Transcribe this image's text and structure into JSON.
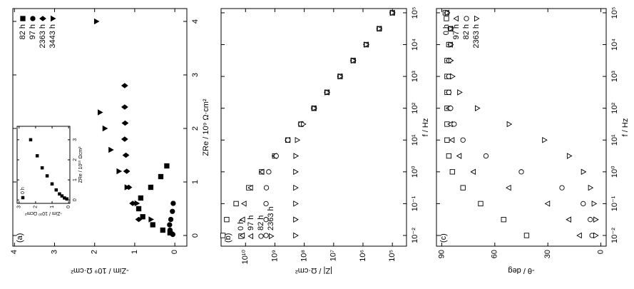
{
  "chart_data": [
    {
      "type": "scatter",
      "panel_label": "(a)",
      "xlabel": "ZRe / 10⁹ Ω·cm²",
      "ylabel": "-Zim / 10⁹ Ω·cm²",
      "xlim": [
        -0.2,
        4.24
      ],
      "ylim": [
        -0.3,
        4.04
      ],
      "xticks": [
        0,
        1,
        2,
        3,
        4
      ],
      "yticks": [
        0,
        1,
        2,
        3,
        4
      ],
      "legend": "upper right",
      "filled": true,
      "series": [
        {
          "name": "82 h",
          "marker": "square",
          "color": "#000000",
          "x": [
            0.05,
            0.1,
            0.2,
            0.35,
            0.5,
            0.7,
            0.9,
            1.1,
            1.3
          ],
          "values": [
            0.12,
            0.3,
            0.55,
            0.8,
            0.9,
            0.85,
            0.6,
            0.35,
            0.2
          ]
        },
        {
          "name": "97 h",
          "marker": "circle",
          "color": "#000000",
          "x": [
            0.02,
            0.05,
            0.1,
            0.2,
            0.3,
            0.45,
            0.6
          ],
          "values": [
            0.05,
            0.1,
            0.12,
            0.13,
            0.1,
            0.06,
            0.04
          ]
        },
        {
          "name": "2363 h",
          "marker": "diamond",
          "color": "#000000",
          "x": [
            0.3,
            0.6,
            0.9,
            1.2,
            1.5,
            1.8,
            2.1,
            2.4,
            2.8
          ],
          "values": [
            0.9,
            1.05,
            1.15,
            1.2,
            1.22,
            1.25,
            1.24,
            1.25,
            1.25
          ]
        },
        {
          "name": "3443 h",
          "marker": "triangle-down",
          "color": "#000000",
          "x": [
            0.3,
            0.6,
            0.9,
            1.2,
            1.6,
            2.0,
            2.3,
            4.0
          ],
          "values": [
            0.6,
            0.95,
            1.2,
            1.4,
            1.6,
            1.75,
            1.87,
            1.96
          ]
        }
      ],
      "inset": {
        "type": "scatter",
        "xlabel": "ZRe / 10¹⁰ Ωcm²",
        "ylabel": "-Zim / 10¹⁰ Ωcm²",
        "xlim": [
          -0.17,
          3.67
        ],
        "ylim": [
          -0.08,
          3.12
        ],
        "xticks": [
          0,
          1,
          2,
          3
        ],
        "yticks": [
          0,
          1,
          2,
          3
        ],
        "legend": "upper left",
        "filled": true,
        "series": [
          {
            "name": "0 h",
            "marker": "square",
            "color": "#000000",
            "x": [
              0.05,
              0.1,
              0.2,
              0.3,
              0.5,
              0.8,
              1.2,
              1.6,
              2.2,
              3.0
            ],
            "values": [
              0.1,
              0.25,
              0.4,
              0.55,
              0.75,
              1.0,
              1.3,
              1.6,
              1.9,
              2.3
            ]
          }
        ]
      }
    },
    {
      "type": "scatter",
      "panel_label": "(b)",
      "xlabel": "f / Hz",
      "ylabel": "|Z| / Ω·cm²",
      "xscale": "log",
      "yscale": "log",
      "xlim": [
        0.0046,
        136000
      ],
      "ylim": [
        33000,
        68000000000
      ],
      "xticks": [
        {
          "value": 0.01,
          "label": "10⁻²"
        },
        {
          "value": 0.1,
          "label": "10⁻¹"
        },
        {
          "value": 1,
          "label": "10⁰"
        },
        {
          "value": 10,
          "label": "10¹"
        },
        {
          "value": 100,
          "label": "10²"
        },
        {
          "value": 1000,
          "label": "10³"
        },
        {
          "value": 10000,
          "label": "10⁴"
        },
        {
          "value": 100000,
          "label": "10⁵"
        }
      ],
      "yticks": [
        {
          "value": 100000,
          "label": "10⁵"
        },
        {
          "value": 1000000,
          "label": "10⁶"
        },
        {
          "value": 10000000,
          "label": "10⁷"
        },
        {
          "value": 100000000,
          "label": "10⁸"
        },
        {
          "value": 1000000000,
          "label": "10⁹"
        },
        {
          "value": 10000000000,
          "label": "10¹⁰"
        }
      ],
      "legend": "upper left",
      "filled": false,
      "series": [
        {
          "name": "0 h",
          "marker": "square",
          "color": "#000000",
          "x": [
            0.01,
            0.0316,
            0.1,
            0.316,
            1,
            3.16,
            10,
            31.6,
            100,
            316,
            1000,
            3160,
            10000,
            31600,
            100000
          ],
          "values": [
            58900000000.0,
            43700000000.0,
            20900000000.0,
            7760000000.0,
            2820000000.0,
            1010000000.0,
            363000000.0,
            130000000.0,
            46800000.0,
            16800000.0,
            6030000.0,
            2160000.0,
            776000.0,
            279000.0,
            100000.0
          ]
        },
        {
          "name": "97 h",
          "marker": "triangle-up",
          "color": "#000000",
          "x": [
            0.01,
            0.0316,
            0.1,
            0.316,
            1,
            3.16,
            10,
            31.6,
            100,
            316,
            1000,
            3160,
            10000,
            31600,
            100000
          ],
          "values": [
            12600000000.0,
            12300000000.0,
            11000000000.0,
            6610000000.0,
            2750000000.0,
            1010000000.0,
            363000000.0,
            130000000.0,
            46800000.0,
            16800000.0,
            6030000.0,
            2160000.0,
            776000.0,
            279000.0,
            100000.0
          ]
        },
        {
          "name": "82 h",
          "marker": "circle",
          "color": "#000000",
          "x": [
            0.01,
            0.0316,
            0.1,
            0.316,
            1,
            3.16,
            10,
            31.6,
            100,
            316,
            1000,
            3160,
            10000,
            31600,
            100000
          ],
          "values": [
            2000000000.0,
            2000000000.0,
            2000000000.0,
            1950000000.0,
            1620000000.0,
            902000000.0,
            360000000.0,
            130000000.0,
            46800000.0,
            16800000.0,
            6030000.0,
            2160000.0,
            776000.0,
            279000.0,
            100000.0
          ]
        },
        {
          "name": "2363 h",
          "marker": "triangle-down",
          "color": "#000000",
          "x": [
            0.01,
            0.0316,
            0.1,
            0.316,
            1,
            3.16,
            10,
            31.6,
            100,
            316,
            1000,
            3160,
            10000,
            31600,
            100000
          ],
          "values": [
            200000000.0,
            200000000.0,
            200000000.0,
            200000000.0,
            200000000.0,
            197000000.0,
            175000000.0,
            109000000.0,
            46200000.0,
            16800000.0,
            6030000.0,
            2160000.0,
            776000.0,
            279000.0,
            100000.0
          ]
        }
      ]
    },
    {
      "type": "scatter",
      "panel_label": "(c)",
      "xlabel": "f / Hz",
      "ylabel": "-θ / deg",
      "xscale": "log",
      "xlim": [
        0.0046,
        136000
      ],
      "ylim": [
        -3,
        93
      ],
      "xticks": [
        {
          "value": 0.01,
          "label": "10⁻²"
        },
        {
          "value": 0.1,
          "label": "10⁻¹"
        },
        {
          "value": 1,
          "label": "10⁰"
        },
        {
          "value": 10,
          "label": "10¹"
        },
        {
          "value": 100,
          "label": "10²"
        },
        {
          "value": 1000,
          "label": "10³"
        },
        {
          "value": 10000,
          "label": "10⁴"
        },
        {
          "value": 100000,
          "label": "10⁵"
        }
      ],
      "yticks": [
        0,
        30,
        60,
        90
      ],
      "legend": "upper right",
      "filled": false,
      "series": [
        {
          "name": "0 h",
          "marker": "square",
          "color": "#000000",
          "x": [
            0.01,
            0.0316,
            0.1,
            0.316,
            1,
            3.16,
            10,
            31.6,
            100,
            316,
            1000,
            3160,
            10000,
            31600,
            100000
          ],
          "values": [
            42,
            55,
            68,
            78,
            84,
            86,
            87,
            87,
            87,
            87,
            87,
            87,
            86,
            85,
            88
          ]
        },
        {
          "name": "97 h",
          "marker": "triangle-up",
          "color": "#000000",
          "x": [
            0.01,
            0.0316,
            0.1,
            0.316,
            1,
            3.16,
            10,
            31.6,
            100,
            316,
            1000,
            3160,
            10000,
            31600,
            100000
          ],
          "values": [
            12,
            18,
            30,
            52,
            72,
            80,
            84,
            85,
            86,
            86,
            86,
            86,
            85,
            85,
            87
          ]
        },
        {
          "name": "82 h",
          "marker": "circle",
          "color": "#000000",
          "x": [
            0.01,
            0.0316,
            0.1,
            0.316,
            1,
            3.16,
            10,
            31.6,
            100,
            316,
            1000,
            3160,
            10000,
            31600,
            100000
          ],
          "values": [
            5,
            6,
            10,
            22,
            45,
            65,
            78,
            83,
            85,
            86,
            86,
            86,
            85,
            85,
            87
          ]
        },
        {
          "name": "2363 h",
          "marker": "triangle-down",
          "color": "#000000",
          "x": [
            0.01,
            0.0316,
            0.1,
            0.316,
            1,
            3.16,
            10,
            31.6,
            100,
            316,
            1000,
            3160,
            10000,
            31600,
            100000
          ],
          "values": [
            3,
            3,
            4,
            6,
            10,
            18,
            32,
            52,
            70,
            80,
            84,
            85,
            85,
            85,
            87
          ]
        }
      ]
    }
  ]
}
